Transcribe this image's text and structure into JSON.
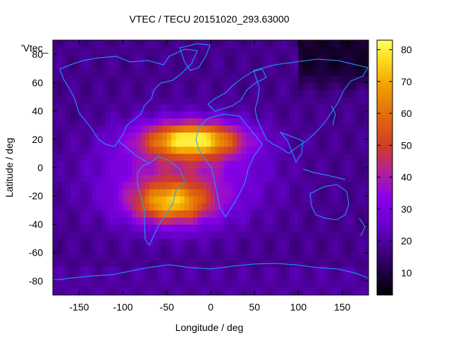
{
  "chart_data": {
    "type": "heatmap",
    "title": "VTEC / TECU 20151020_293.63000",
    "xlabel": "Longitude / deg",
    "ylabel": "Latitude / deg",
    "series_key": "'Vtec_",
    "xlim": [
      -180,
      180
    ],
    "ylim": [
      -90,
      90
    ],
    "x_ticks": [
      -150,
      -100,
      -50,
      0,
      50,
      100,
      150
    ],
    "x_tick_labels": [
      "-150",
      "-100",
      "-50",
      "0",
      "50",
      "100",
      "150"
    ],
    "y_ticks": [
      -80,
      -60,
      -40,
      -20,
      0,
      20,
      40,
      60,
      80
    ],
    "y_tick_labels": [
      "-80",
      "-60",
      "-40",
      "-20",
      "0",
      "20",
      "40",
      "60",
      "80"
    ],
    "colorbar": {
      "range": [
        3,
        83
      ],
      "ticks": [
        10,
        20,
        30,
        40,
        50,
        60,
        70,
        80
      ],
      "tick_labels": [
        "10",
        "20",
        "30",
        "40",
        "50",
        "60",
        "70",
        "80"
      ],
      "palette": [
        "#000000",
        "#2a0058",
        "#6600cc",
        "#8a00e8",
        "#b020a0",
        "#d03a2a",
        "#e06010",
        "#f0a000",
        "#ffe020",
        "#ffff60"
      ]
    },
    "grid_resolution_deg": 5,
    "field_description_values": {
      "background_min": 6,
      "equatorial_peak": 80,
      "peak_location": [
        -20,
        20
      ],
      "secondary_peak_location": [
        -45,
        -25
      ]
    },
    "coastline_color": "#1aa0ff"
  }
}
